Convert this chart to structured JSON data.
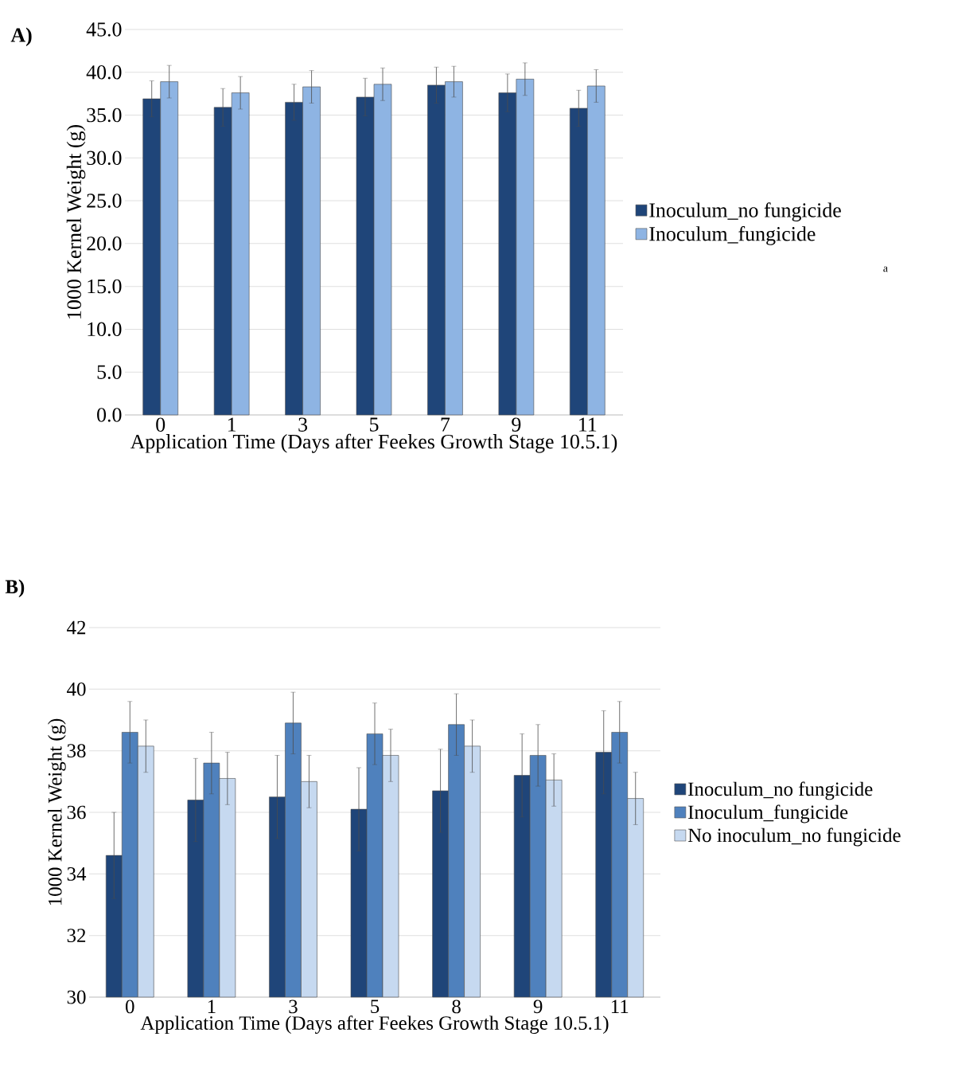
{
  "chart_data": [
    {
      "type": "bar",
      "title": "A)",
      "xlabel": "Application Time (Days after Feekes Growth Stage 10.5.1)",
      "ylabel": "1000 Kernel Weight (g)",
      "categories": [
        "0",
        "1",
        "3",
        "5",
        "7",
        "9",
        "11"
      ],
      "series": [
        {
          "name": "Inoculum_no fungicide",
          "color": "#1f4579",
          "values": [
            36.9,
            35.9,
            36.5,
            37.1,
            38.5,
            37.6,
            35.8
          ],
          "errors": [
            2.1,
            2.2,
            2.1,
            2.2,
            2.1,
            2.2,
            2.1
          ]
        },
        {
          "name": "Inoculum_fungicide",
          "color": "#8eb4e3",
          "values": [
            38.9,
            37.6,
            38.3,
            38.6,
            38.9,
            39.2,
            38.4
          ],
          "errors": [
            1.9,
            1.9,
            1.9,
            1.9,
            1.8,
            1.9,
            1.9
          ]
        }
      ],
      "ylim": [
        0,
        45
      ],
      "yticks": [
        {
          "value": 0,
          "label": "0.0"
        },
        {
          "value": 5,
          "label": "5.0"
        },
        {
          "value": 10,
          "label": "10.0"
        },
        {
          "value": 15,
          "label": "15.0"
        },
        {
          "value": 20,
          "label": "20.0"
        },
        {
          "value": 25,
          "label": "25.0"
        },
        {
          "value": 30,
          "label": "30.0"
        },
        {
          "value": 35,
          "label": "35.0"
        },
        {
          "value": 40,
          "label": "40.0"
        },
        {
          "value": 45,
          "label": "45.0"
        }
      ],
      "grid": "y",
      "legend": "right",
      "annotations": [
        "a"
      ]
    },
    {
      "type": "bar",
      "title": "B)",
      "xlabel": "Application Time (Days after Feekes Growth Stage 10.5.1)",
      "ylabel": "1000 Kernel Weight (g)",
      "categories": [
        "0",
        "1",
        "3",
        "5",
        "8",
        "9",
        "11"
      ],
      "series": [
        {
          "name": "Inoculum_no fungicide",
          "color": "#1f4579",
          "values": [
            34.6,
            36.4,
            36.5,
            36.1,
            36.7,
            37.2,
            37.95
          ],
          "errors": [
            1.4,
            1.35,
            1.35,
            1.35,
            1.35,
            1.35,
            1.35
          ]
        },
        {
          "name": "Inoculum_fungicide",
          "color": "#4f81bd",
          "values": [
            38.6,
            37.6,
            38.9,
            38.55,
            38.85,
            37.85,
            38.6
          ],
          "errors": [
            1.0,
            1.0,
            1.0,
            1.0,
            1.0,
            1.0,
            1.0
          ]
        },
        {
          "name": "No inoculum_no fungicide",
          "color": "#c6d9f0",
          "values": [
            38.15,
            37.1,
            37.0,
            37.85,
            38.15,
            37.05,
            36.45
          ],
          "errors": [
            0.85,
            0.85,
            0.85,
            0.85,
            0.85,
            0.85,
            0.85
          ]
        }
      ],
      "ylim": [
        30,
        42
      ],
      "yticks": [
        30,
        32,
        34,
        36,
        38,
        40,
        42
      ],
      "grid": "y",
      "legend": "right"
    }
  ]
}
